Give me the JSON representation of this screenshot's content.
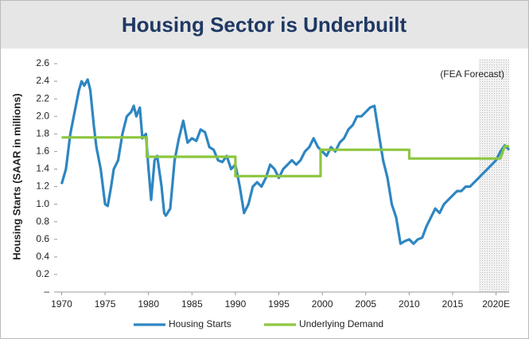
{
  "chart_data": {
    "type": "line",
    "title": "Housing Sector is Underbuilt",
    "y_label": "Housing Starts (SAAR in millions)",
    "annotation": "(FEA Forecast)",
    "forecast_start": 2018,
    "xlim": [
      1969.5,
      2021.5
    ],
    "xticks": [
      1970,
      1975,
      1980,
      1985,
      1990,
      1995,
      2000,
      2005,
      2010,
      2015,
      {
        "value": 2020,
        "label": "2020E"
      }
    ],
    "ylim": [
      0,
      2.6
    ],
    "yticks": [
      {
        "value": 0,
        "label": "–"
      },
      0.2,
      0.4,
      0.6,
      0.8,
      {
        "value": 1,
        "label": "1.0"
      },
      1.2,
      1.4,
      1.6,
      1.8,
      {
        "value": 2,
        "label": "2.0"
      },
      2.2,
      2.4,
      2.6
    ],
    "grid": false,
    "legend": "bottom",
    "series": [
      {
        "name": "Housing Starts",
        "color": "#2e86c1",
        "x": [
          1970,
          1970.5,
          1971,
          1971.5,
          1972,
          1972.3,
          1972.6,
          1973,
          1973.3,
          1973.7,
          1974,
          1974.5,
          1975,
          1975.3,
          1975.7,
          1976,
          1976.5,
          1977,
          1977.5,
          1978,
          1978.3,
          1978.6,
          1979,
          1979.3,
          1979.7,
          1980,
          1980.3,
          1980.7,
          1981,
          1981.5,
          1981.8,
          1982,
          1982.5,
          1983,
          1983.5,
          1984,
          1984.5,
          1985,
          1985.5,
          1986,
          1986.5,
          1987,
          1987.5,
          1988,
          1988.5,
          1989,
          1989.5,
          1990,
          1990.5,
          1991,
          1991.5,
          1992,
          1992.5,
          1993,
          1993.5,
          1994,
          1994.5,
          1995,
          1995.5,
          1996,
          1996.5,
          1997,
          1997.5,
          1998,
          1998.5,
          1999,
          1999.5,
          2000,
          2000.5,
          2001,
          2001.5,
          2002,
          2002.5,
          2003,
          2003.5,
          2004,
          2004.5,
          2005,
          2005.5,
          2006,
          2006.5,
          2007,
          2007.5,
          2008,
          2008.5,
          2009,
          2009.5,
          2010,
          2010.5,
          2011,
          2011.5,
          2012,
          2012.5,
          2013,
          2013.5,
          2014,
          2014.5,
          2015,
          2015.5,
          2016,
          2016.5,
          2017,
          2017.5,
          2018,
          2018.5,
          2019,
          2019.5,
          2020,
          2020.5,
          2021,
          2021.5
        ],
        "values": [
          1.23,
          1.4,
          1.8,
          2.05,
          2.3,
          2.4,
          2.35,
          2.42,
          2.3,
          1.9,
          1.65,
          1.4,
          1.0,
          0.98,
          1.2,
          1.4,
          1.5,
          1.8,
          2.0,
          2.05,
          2.12,
          2.0,
          2.1,
          1.75,
          1.8,
          1.4,
          1.05,
          1.5,
          1.55,
          1.2,
          0.9,
          0.87,
          0.95,
          1.5,
          1.75,
          1.95,
          1.7,
          1.75,
          1.72,
          1.85,
          1.82,
          1.65,
          1.62,
          1.5,
          1.48,
          1.55,
          1.4,
          1.45,
          1.2,
          0.9,
          1.0,
          1.2,
          1.25,
          1.2,
          1.3,
          1.45,
          1.4,
          1.3,
          1.4,
          1.45,
          1.5,
          1.45,
          1.5,
          1.6,
          1.65,
          1.75,
          1.65,
          1.6,
          1.55,
          1.65,
          1.6,
          1.7,
          1.75,
          1.85,
          1.9,
          2.0,
          2.0,
          2.05,
          2.1,
          2.12,
          1.8,
          1.5,
          1.3,
          1.0,
          0.85,
          0.55,
          0.58,
          0.6,
          0.55,
          0.6,
          0.62,
          0.75,
          0.85,
          0.95,
          0.9,
          1.0,
          1.05,
          1.1,
          1.15,
          1.15,
          1.2,
          1.2,
          1.25,
          1.3,
          1.35,
          1.4,
          1.45,
          1.5,
          1.6,
          1.67,
          1.62
        ]
      },
      {
        "name": "Underlying Demand",
        "color": "#8dc63f",
        "x": [
          1970,
          1979.8,
          1979.8,
          1990,
          1990,
          1999.8,
          1999.8,
          2010,
          2010,
          2020.5,
          2021,
          2021.5
        ],
        "values": [
          1.76,
          1.76,
          1.54,
          1.54,
          1.32,
          1.32,
          1.62,
          1.62,
          1.52,
          1.52,
          1.66,
          1.66
        ]
      }
    ]
  }
}
